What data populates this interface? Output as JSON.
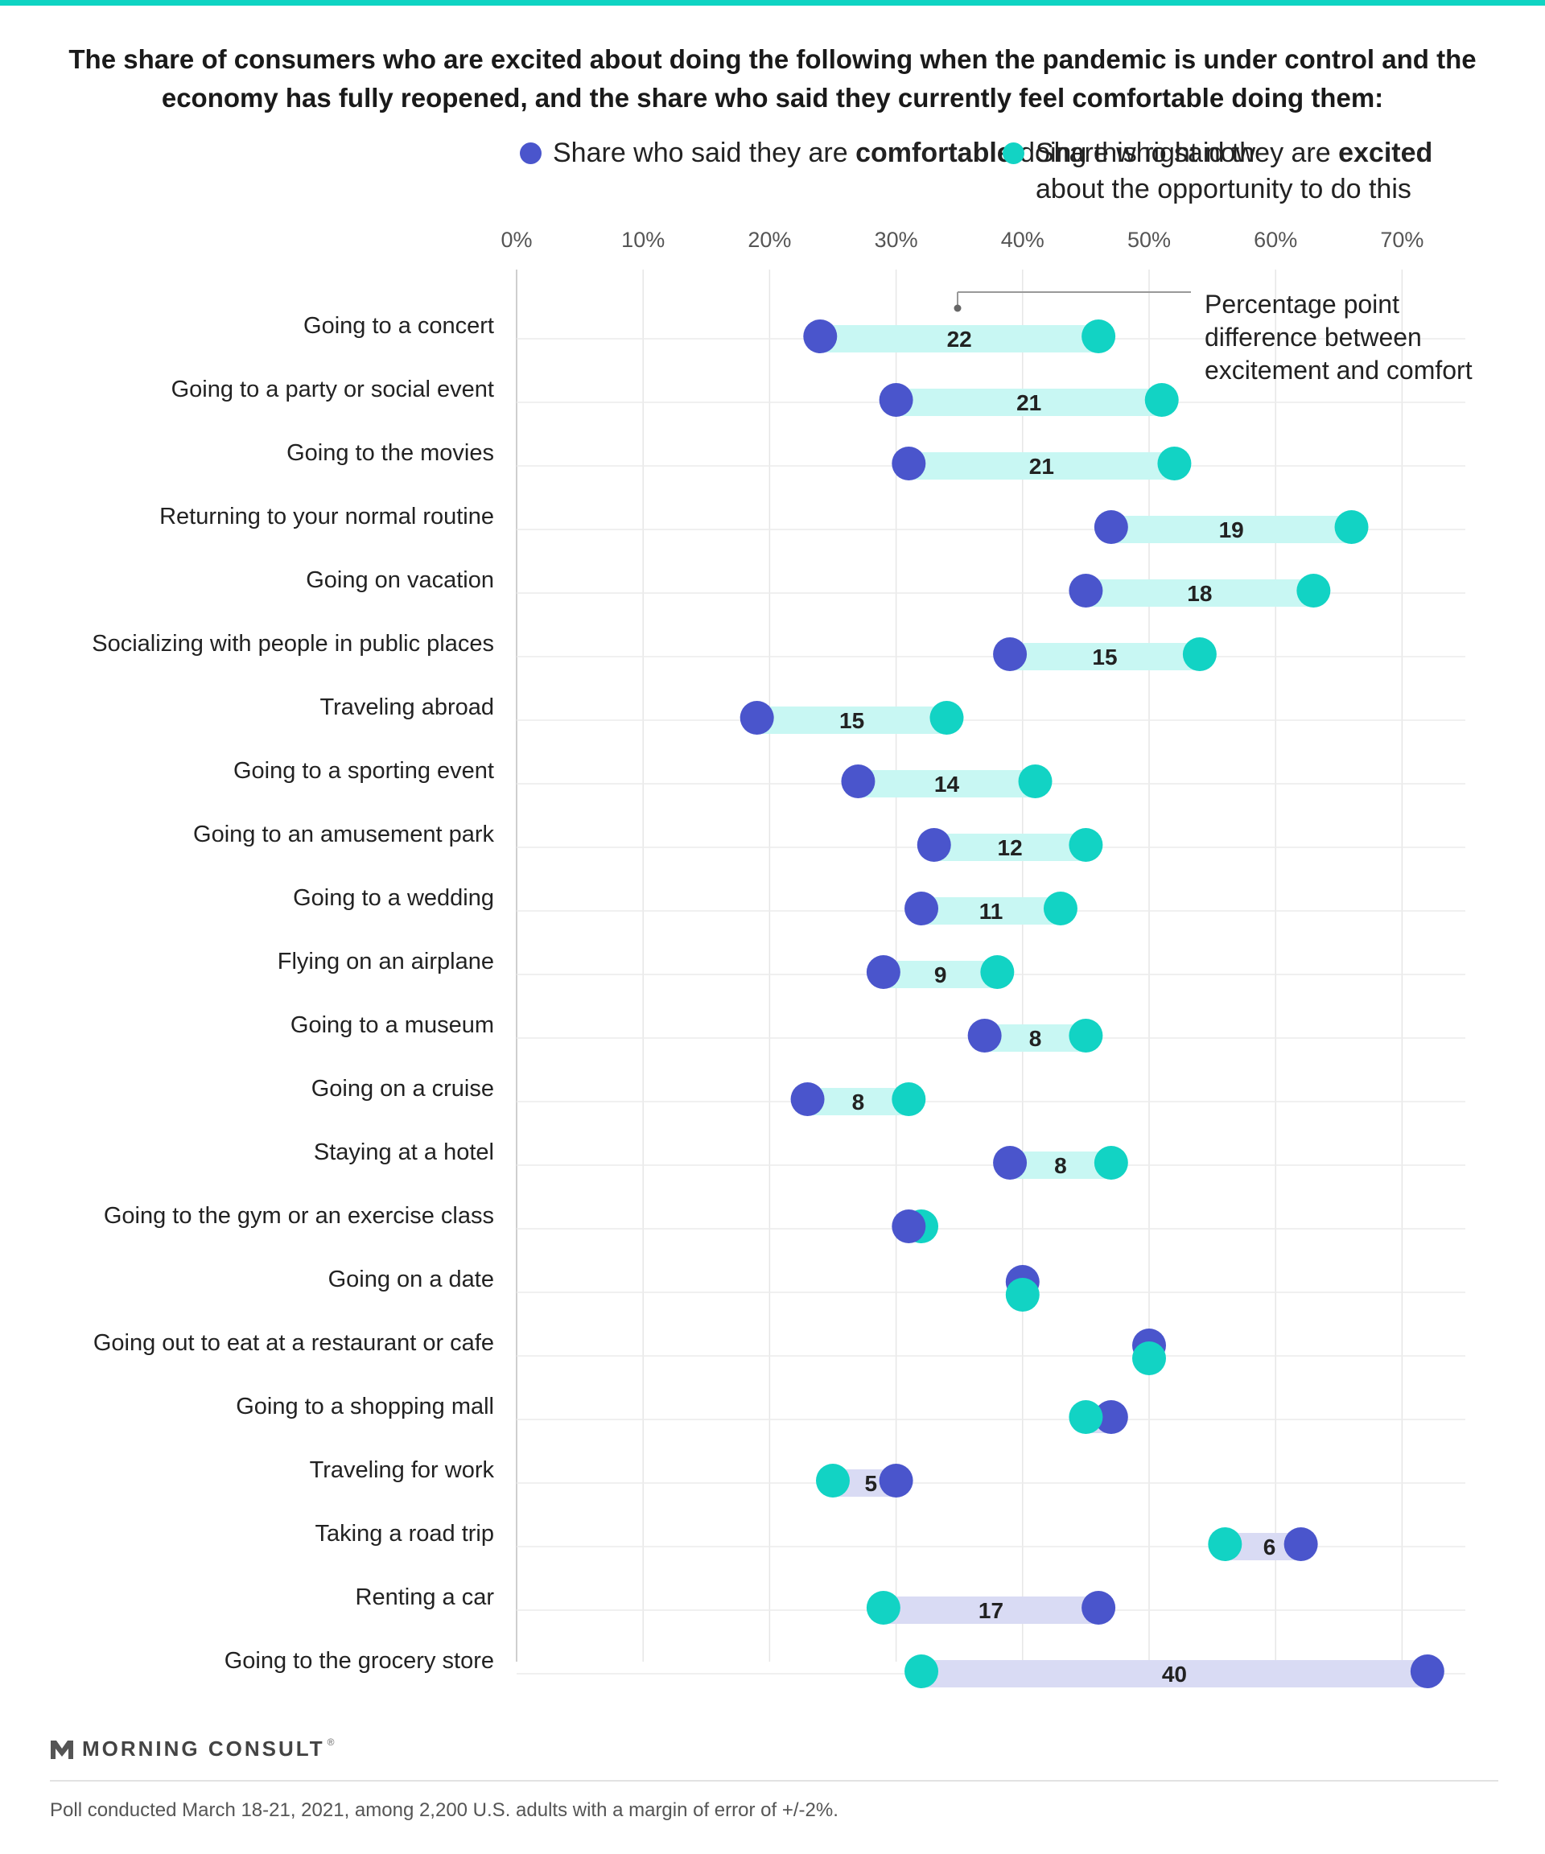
{
  "title": "The share of consumers who are excited about doing the following when the pandemic is under control and the economy has fully reopened, and the share who said they currently feel comfortable doing them:",
  "legend": {
    "comfortable": {
      "pre": "Share who said they are ",
      "bold": "comfortable",
      "post": " doing this right now",
      "color": "#4a55cc"
    },
    "excited": {
      "pre": "Share who said they are ",
      "bold": "excited",
      "post": " about the opportunity to do this",
      "color": "#12d3c4"
    }
  },
  "annotation": {
    "line1": "Percentage point",
    "line2": "difference between",
    "line3": "excitement and comfort"
  },
  "chart_data": {
    "type": "dumbbell",
    "x_ticks": [
      "0%",
      "10%",
      "20%",
      "30%",
      "40%",
      "50%",
      "60%",
      "70%"
    ],
    "xlim": [
      0,
      75
    ],
    "grid": true,
    "series": [
      {
        "name": "Share who said they are comfortable doing this right now",
        "color": "#4a55cc"
      },
      {
        "name": "Share who said they are excited about the opportunity to do this",
        "color": "#12d3c4"
      }
    ],
    "gap_colors": {
      "excitement_higher": "#c8f7f3",
      "comfort_higher": "#d9dbf4"
    },
    "rows": [
      {
        "label": "Going to a concert",
        "comfortable": 24,
        "excited": 46,
        "diff": "22"
      },
      {
        "label": "Going to a party or social event",
        "comfortable": 30,
        "excited": 51,
        "diff": "21"
      },
      {
        "label": "Going to the movies",
        "comfortable": 31,
        "excited": 52,
        "diff": "21"
      },
      {
        "label": "Returning to your normal routine",
        "comfortable": 47,
        "excited": 66,
        "diff": "19"
      },
      {
        "label": "Going on vacation",
        "comfortable": 45,
        "excited": 63,
        "diff": "18"
      },
      {
        "label": "Socializing with people in public places",
        "comfortable": 39,
        "excited": 54,
        "diff": "15"
      },
      {
        "label": "Traveling abroad",
        "comfortable": 19,
        "excited": 34,
        "diff": "15"
      },
      {
        "label": "Going to a sporting event",
        "comfortable": 27,
        "excited": 41,
        "diff": "14"
      },
      {
        "label": "Going to an amusement park",
        "comfortable": 33,
        "excited": 45,
        "diff": "12"
      },
      {
        "label": "Going to a wedding",
        "comfortable": 32,
        "excited": 43,
        "diff": "11"
      },
      {
        "label": "Flying on an airplane",
        "comfortable": 29,
        "excited": 38,
        "diff": "9"
      },
      {
        "label": "Going to a museum",
        "comfortable": 37,
        "excited": 45,
        "diff": "8"
      },
      {
        "label": "Going on a cruise",
        "comfortable": 23,
        "excited": 31,
        "diff": "8"
      },
      {
        "label": "Staying at a hotel",
        "comfortable": 39,
        "excited": 47,
        "diff": "8"
      },
      {
        "label": "Going to the gym or an exercise class",
        "comfortable": 31,
        "excited": 32,
        "diff": ""
      },
      {
        "label": "Going on a date",
        "comfortable": 40,
        "excited": 40,
        "diff": ""
      },
      {
        "label": "Going out to eat at a restaurant or cafe",
        "comfortable": 50,
        "excited": 50,
        "diff": ""
      },
      {
        "label": "Going to a shopping mall",
        "comfortable": 47,
        "excited": 45,
        "diff": ""
      },
      {
        "label": "Traveling for work",
        "comfortable": 30,
        "excited": 25,
        "diff": "5"
      },
      {
        "label": "Taking a road trip",
        "comfortable": 62,
        "excited": 56,
        "diff": "6"
      },
      {
        "label": "Renting a car",
        "comfortable": 46,
        "excited": 29,
        "diff": "17"
      },
      {
        "label": "Going to the grocery store",
        "comfortable": 72,
        "excited": 32,
        "diff": "40"
      }
    ]
  },
  "footer": {
    "brand": "MORNING CONSULT",
    "registered": "®",
    "note": "Poll conducted March 18-21, 2021, among 2,200 U.S. adults with a margin of error of +/-2%."
  }
}
